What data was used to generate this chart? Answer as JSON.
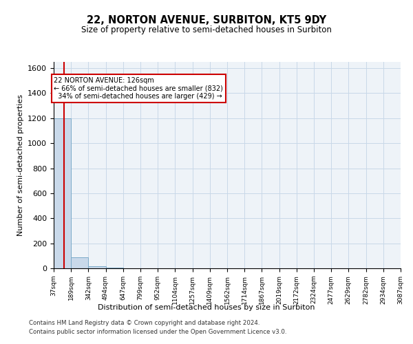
{
  "title": "22, NORTON AVENUE, SURBITON, KT5 9DY",
  "subtitle": "Size of property relative to semi-detached houses in Surbiton",
  "xlabel": "Distribution of semi-detached houses by size in Surbiton",
  "ylabel": "Number of semi-detached properties",
  "property_size": 126,
  "property_label": "22 NORTON AVENUE: 126sqm",
  "pct_smaller": 66,
  "n_smaller": 832,
  "pct_larger": 34,
  "n_larger": 429,
  "bin_edges": [
    37,
    189,
    342,
    494,
    647,
    799,
    952,
    1104,
    1257,
    1409,
    1562,
    1714,
    1867,
    2019,
    2172,
    2324,
    2477,
    2629,
    2782,
    2934,
    3087
  ],
  "bin_heights": [
    1200,
    90,
    15,
    3,
    1,
    0,
    0,
    0,
    0,
    0,
    0,
    0,
    0,
    0,
    0,
    0,
    0,
    0,
    0,
    0
  ],
  "bar_color": "#c9d9ea",
  "bar_edgecolor": "#7aaac8",
  "grid_color": "#c8d8e8",
  "bg_color": "#eef3f8",
  "annotation_box_color": "#ffffff",
  "annotation_border_color": "#cc0000",
  "vline_color": "#cc0000",
  "ylim": [
    0,
    1650
  ],
  "yticks": [
    0,
    200,
    400,
    600,
    800,
    1000,
    1200,
    1400,
    1600
  ],
  "footnote1": "Contains HM Land Registry data © Crown copyright and database right 2024.",
  "footnote2": "Contains public sector information licensed under the Open Government Licence v3.0."
}
